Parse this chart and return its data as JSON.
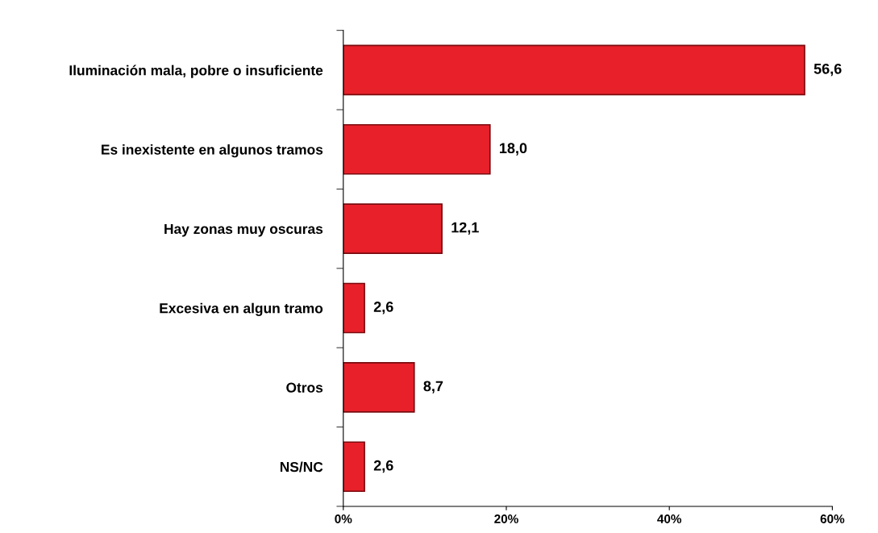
{
  "chart_data": {
    "type": "bar",
    "orientation": "horizontal",
    "categories": [
      "Iluminación mala, pobre o insuficiente",
      "Es inexistente en algunos tramos",
      "Hay zonas muy oscuras",
      "Excesiva en algun tramo",
      "Otros",
      "NS/NC"
    ],
    "values": [
      56.6,
      18.0,
      12.1,
      2.6,
      8.7,
      2.6
    ],
    "value_labels": [
      "56,6",
      "18,0",
      "12,1",
      "2,6",
      "8,7",
      "2,6"
    ],
    "color": "#e8202a",
    "xlim": [
      0,
      60
    ],
    "xticks": [
      {
        "value": 0,
        "label": "0%"
      },
      {
        "value": 20,
        "label": "20%"
      },
      {
        "value": 40,
        "label": "40%"
      },
      {
        "value": 60,
        "label": "60%"
      }
    ],
    "grid": false,
    "legend": false
  }
}
